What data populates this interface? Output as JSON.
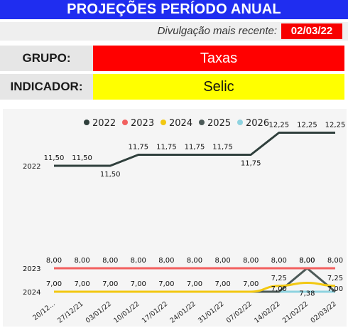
{
  "header": {
    "title": "PROJEÇÕES PERÍODO ANUAL",
    "date_label": "Divulgação mais recente:",
    "date_value": "02/03/22"
  },
  "filters": {
    "grupo_label": "GRUPO:",
    "grupo_value": "Taxas",
    "indicador_label": "INDICADOR:",
    "indicador_value": "Selic"
  },
  "colors": {
    "title_bg": "#1f2df0",
    "grupo_bg": "#ff0000",
    "indicador_bg": "#ffff00",
    "date_bg": "#f70000"
  },
  "chart_data": {
    "type": "line",
    "categories": [
      "20/12...",
      "27/12/21",
      "03/01/22",
      "10/01/22",
      "17/01/22",
      "24/01/22",
      "31/01/22",
      "07/02/22",
      "14/02/22",
      "21/02/22",
      "02/03/22"
    ],
    "legend_position": "top",
    "y_labels": [
      "2022",
      "2023",
      "2024"
    ],
    "series": [
      {
        "name": "2022",
        "color": "#2f3f3c",
        "values": [
          11.5,
          11.5,
          11.5,
          11.75,
          11.75,
          11.75,
          11.75,
          11.75,
          12.25,
          12.25,
          12.25
        ],
        "labels": [
          "11,50",
          "11,50",
          "11,50",
          "11,75",
          "11,75",
          "11,75",
          "11,75",
          "11,75",
          "12,25",
          "12,25",
          "12,25"
        ]
      },
      {
        "name": "2023",
        "color": "#f2605f",
        "values": [
          8.0,
          8.0,
          8.0,
          8.0,
          8.0,
          8.0,
          8.0,
          8.0,
          8.0,
          8.0,
          8.0
        ],
        "labels": [
          "8,00",
          "8,00",
          "8,00",
          "8,00",
          "8,00",
          "8,00",
          "8,00",
          "8,00",
          "8,00",
          "8,00",
          "8,00"
        ]
      },
      {
        "name": "2024",
        "color": "#f2c811",
        "values": [
          7.0,
          7.0,
          7.0,
          7.0,
          7.0,
          7.0,
          7.0,
          7.0,
          7.25,
          7.38,
          7.25
        ],
        "labels": [
          "7,00",
          "7,00",
          "7,00",
          "7,00",
          "7,00",
          "7,00",
          "7,00",
          "7,00",
          "7,25",
          "7,38",
          "7,25"
        ]
      },
      {
        "name": "2025",
        "color": "#4c5a58",
        "values": [
          7.0,
          7.0,
          7.0,
          7.0,
          7.0,
          7.0,
          7.0,
          7.0,
          7.0,
          8.0,
          7.0
        ],
        "labels": [
          "7,00",
          "7,00",
          "7,00",
          "7,00",
          "7,00",
          "7,00",
          "7,00",
          "7,00",
          "7,00",
          "8,00",
          "7,00"
        ]
      },
      {
        "name": "2026",
        "color": "#8ed3e0",
        "values": [
          7.0,
          7.0,
          7.0,
          7.0,
          7.0,
          7.0,
          7.0,
          7.0,
          7.0,
          7.0,
          7.0
        ],
        "labels": []
      }
    ]
  }
}
